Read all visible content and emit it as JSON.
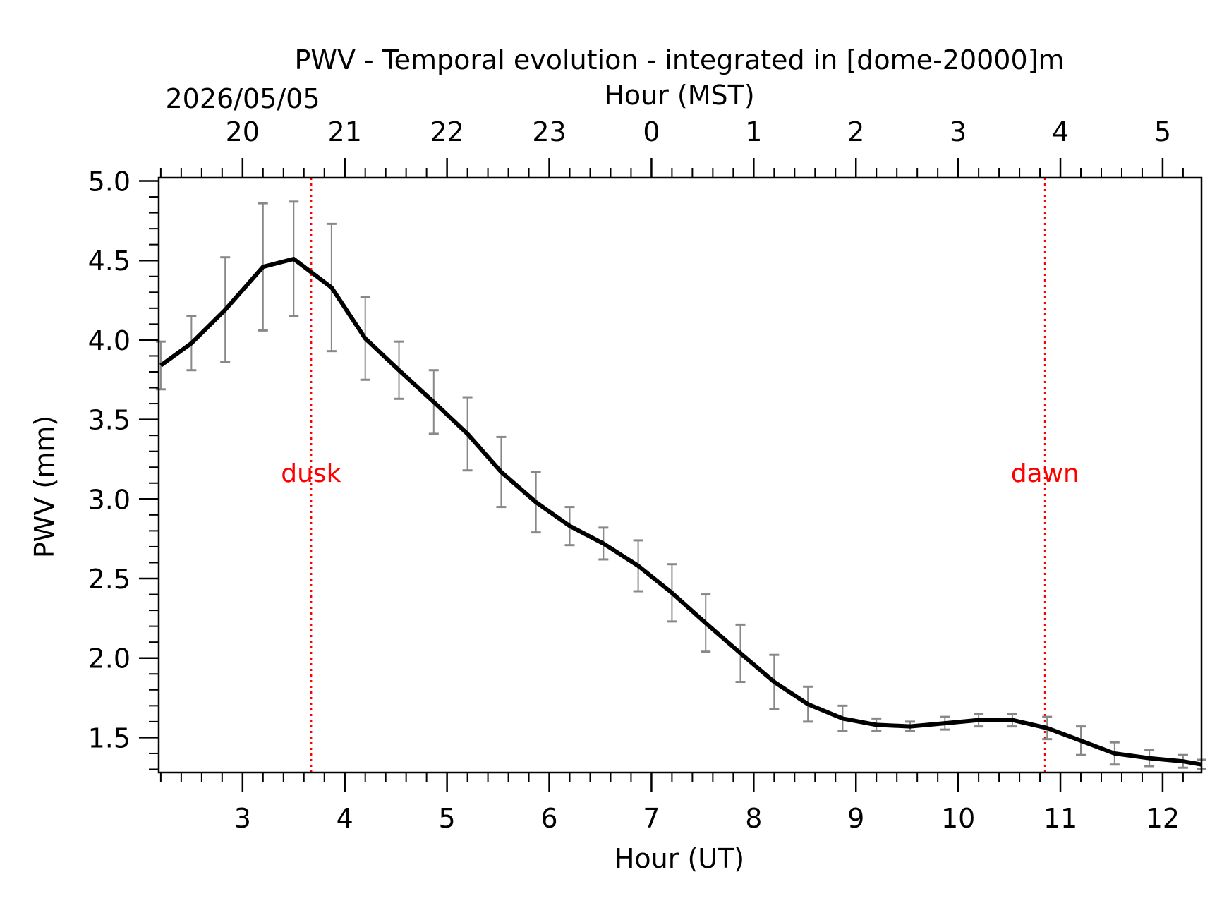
{
  "chart_data": {
    "type": "line",
    "title": "PWV - Temporal evolution - integrated in [dome-20000]m",
    "date_label": "2026/05/05",
    "xlabel": "Hour (UT)",
    "x2label": "Hour (MST)",
    "ylabel": "PWV (mm)",
    "xlim": [
      2.18,
      12.38
    ],
    "ylim": [
      1.28,
      5.02
    ],
    "x_ticks": [
      3,
      4,
      5,
      6,
      7,
      8,
      9,
      10,
      11,
      12
    ],
    "x_tick_labels": [
      "3",
      "4",
      "5",
      "6",
      "7",
      "8",
      "9",
      "10",
      "11",
      "12"
    ],
    "x2_ticks": [
      3,
      4,
      5,
      6,
      7,
      8,
      9,
      10,
      11,
      12
    ],
    "x2_tick_labels": [
      "20",
      "21",
      "22",
      "23",
      "0",
      "1",
      "2",
      "3",
      "4",
      "5"
    ],
    "y_ticks": [
      1.5,
      2.0,
      2.5,
      3.0,
      3.5,
      4.0,
      4.5,
      5.0
    ],
    "y_tick_labels": [
      "1.5",
      "2.0",
      "2.5",
      "3.0",
      "3.5",
      "4.0",
      "4.5",
      "5.0"
    ],
    "grid": false,
    "series": [
      {
        "x": [
          2.2,
          2.5,
          2.83,
          3.2,
          3.5,
          3.87,
          4.2,
          4.53,
          4.87,
          5.2,
          5.53,
          5.87,
          6.2,
          6.53,
          6.87,
          7.2,
          7.53,
          7.87,
          8.2,
          8.53,
          8.87,
          9.2,
          9.53,
          9.87,
          10.2,
          10.53,
          10.87,
          11.2,
          11.53,
          11.87,
          12.2,
          12.38
        ],
        "y": [
          3.84,
          3.98,
          4.19,
          4.46,
          4.51,
          4.33,
          4.01,
          3.81,
          3.61,
          3.41,
          3.17,
          2.98,
          2.83,
          2.72,
          2.58,
          2.41,
          2.22,
          2.03,
          1.85,
          1.71,
          1.62,
          1.58,
          1.57,
          1.59,
          1.61,
          1.61,
          1.56,
          1.48,
          1.4,
          1.37,
          1.35,
          1.33
        ],
        "y_err": [
          0.15,
          0.17,
          0.33,
          0.4,
          0.36,
          0.4,
          0.26,
          0.18,
          0.2,
          0.23,
          0.22,
          0.19,
          0.12,
          0.1,
          0.16,
          0.18,
          0.18,
          0.18,
          0.17,
          0.11,
          0.08,
          0.04,
          0.03,
          0.04,
          0.04,
          0.04,
          0.07,
          0.09,
          0.07,
          0.05,
          0.04,
          0.03
        ]
      }
    ],
    "vlines": [
      {
        "x": 3.67,
        "label": "dusk",
        "color": "#ff0000"
      },
      {
        "x": 10.85,
        "label": "dawn",
        "color": "#ff0000"
      }
    ],
    "colors": {
      "line": "#000000",
      "errorbar": "#888888",
      "axes": "#000000"
    }
  }
}
